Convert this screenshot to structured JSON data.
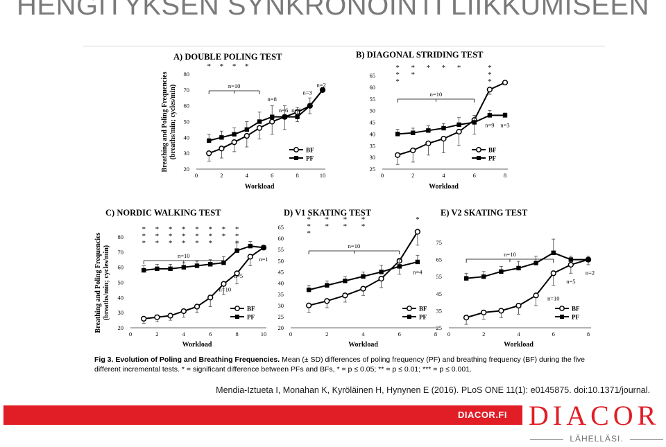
{
  "slide": {
    "title": "HENGITYKSEN SYNKRONOINTI LIIKKUMISEEN",
    "citation": "Mendia-Iztueta I, Monahan K, Kyröläinen H, Hynynen E (2016). PLoS ONE 11(1): e0145875. doi:10.1371/journal.",
    "footer_url": "DIACOR.FI",
    "brand": "DIACOR",
    "slogan": "LÄHELLÄSI."
  },
  "caption": {
    "label": "Fig 3.",
    "title": "Evolution of Poling and Breathing Frequencies.",
    "text1": " Mean (± SD) differences of poling frequency (PF) and breathing frequency (BF) during the five",
    "text2": "different incremental tests. * = significant difference between PFs and BFs, * = p ≤ 0.05; ** = p ≤ 0.01; *** = p ≤ 0.001."
  },
  "chart_data": [
    {
      "type": "line",
      "title": "A) DOUBLE POLING TEST",
      "xlabel": "Workload",
      "ylabel": "Breathing and Poling Frequencies (breaths/min; cycles/min)",
      "xlim": [
        0,
        10
      ],
      "ylim": [
        20,
        80
      ],
      "xticks": [
        0,
        2,
        4,
        6,
        8,
        10
      ],
      "yticks": [
        20,
        30,
        40,
        50,
        60,
        70,
        80
      ],
      "x": [
        1,
        2,
        3,
        4,
        5,
        6,
        7,
        8,
        9,
        10
      ],
      "series": [
        {
          "name": "BF",
          "marker": "open-circle",
          "values": [
            30,
            33,
            37,
            41,
            46,
            50,
            53,
            56,
            60,
            70
          ],
          "err": [
            5,
            6,
            6,
            7,
            7,
            8,
            8,
            6,
            5,
            1
          ]
        },
        {
          "name": "PF",
          "marker": "filled-square",
          "values": [
            38,
            40,
            42,
            45,
            50,
            53,
            53,
            53,
            60,
            70
          ],
          "err": [
            4,
            4,
            4,
            5,
            6,
            7,
            7,
            6,
            5,
            1
          ]
        }
      ],
      "significance": [
        {
          "x": 1,
          "mark": "*"
        },
        {
          "x": 2,
          "mark": "*"
        },
        {
          "x": 3,
          "mark": "*"
        },
        {
          "x": 4,
          "mark": "*"
        }
      ],
      "bracket": {
        "from": 1,
        "to": 5,
        "label": "n=10"
      },
      "annotations": [
        {
          "text": "n=8",
          "x": 6.0,
          "y": 63
        },
        {
          "text": "n=6",
          "x": 6.9,
          "y": 56
        },
        {
          "text": "n=4",
          "x": 7.9,
          "y": 56
        },
        {
          "text": "n=3",
          "x": 8.8,
          "y": 67
        },
        {
          "text": "n=2",
          "x": 9.9,
          "y": 72
        }
      ],
      "legend": "bottom-right"
    },
    {
      "type": "line",
      "title": "B) DIAGONAL STRIDING TEST",
      "xlabel": "Workload",
      "ylabel": "",
      "xlim": [
        0,
        8
      ],
      "ylim": [
        25,
        65
      ],
      "xticks": [
        0,
        2,
        4,
        6,
        8
      ],
      "yticks": [
        25,
        30,
        35,
        40,
        45,
        50,
        55,
        60,
        65
      ],
      "x": [
        1,
        2,
        3,
        4,
        5,
        6,
        7,
        8
      ],
      "series": [
        {
          "name": "BF",
          "marker": "open-circle",
          "values": [
            31,
            33,
            36,
            38,
            41,
            46,
            59,
            62
          ],
          "err": [
            4,
            5,
            5,
            6,
            6,
            6,
            2,
            1
          ]
        },
        {
          "name": "PF",
          "marker": "filled-square",
          "values": [
            40,
            40.5,
            41.5,
            42.5,
            44,
            45,
            48,
            48
          ],
          "err": [
            2,
            2,
            2,
            2,
            3,
            3,
            2,
            1
          ]
        }
      ],
      "significance": [
        {
          "x": 1,
          "mark": "***"
        },
        {
          "x": 2,
          "mark": "**"
        },
        {
          "x": 3,
          "mark": "*"
        },
        {
          "x": 4,
          "mark": "*"
        },
        {
          "x": 5,
          "mark": "*"
        },
        {
          "x": 7,
          "mark": "***"
        }
      ],
      "bracket": {
        "from": 1,
        "to": 6,
        "label": "n=10"
      },
      "annotations": [
        {
          "text": "n=9",
          "x": 7.0,
          "y": 43
        },
        {
          "text": "n=3",
          "x": 8.0,
          "y": 43
        }
      ],
      "legend": "bottom-right"
    },
    {
      "type": "line",
      "title": "C) NORDIC WALKING TEST",
      "xlabel": "Workload",
      "ylabel": "Breathing and Poling Frequencies (breaths/min; cycles/min)",
      "xlim": [
        0,
        10
      ],
      "ylim": [
        20,
        80
      ],
      "xticks": [
        0,
        2,
        4,
        6,
        8,
        10
      ],
      "yticks": [
        20,
        30,
        40,
        50,
        60,
        70,
        80
      ],
      "x": [
        1,
        2,
        3,
        4,
        5,
        6,
        7,
        8,
        9,
        10
      ],
      "series": [
        {
          "name": "BF",
          "marker": "open-circle",
          "values": [
            26,
            27,
            28,
            31,
            34,
            40,
            49,
            56,
            67,
            73
          ],
          "err": [
            3,
            3,
            3,
            4,
            4,
            6,
            7,
            7,
            6,
            1
          ]
        },
        {
          "name": "PF",
          "marker": "filled-square",
          "values": [
            58,
            59,
            59,
            60,
            61,
            62,
            63,
            71,
            74,
            73
          ],
          "err": [
            3,
            3,
            3,
            3,
            3,
            3,
            4,
            5,
            3,
            1
          ]
        }
      ],
      "significance": [
        {
          "x": 1,
          "mark": "***"
        },
        {
          "x": 2,
          "mark": "***"
        },
        {
          "x": 3,
          "mark": "***"
        },
        {
          "x": 4,
          "mark": "***"
        },
        {
          "x": 5,
          "mark": "***"
        },
        {
          "x": 6,
          "mark": "***"
        },
        {
          "x": 7,
          "mark": "**"
        },
        {
          "x": 8,
          "mark": "***"
        }
      ],
      "bracket": {
        "from": 1,
        "to": 7,
        "label": "n=10"
      },
      "annotations": [
        {
          "text": "n=1",
          "x": 10.0,
          "y": 64
        },
        {
          "text": "n=5",
          "x": 8.1,
          "y": 53
        },
        {
          "text": "n=10",
          "x": 7.1,
          "y": 44
        }
      ],
      "legend": "bottom-right"
    },
    {
      "type": "line",
      "title": "D) V1 SKATING TEST",
      "xlabel": "Workload",
      "ylabel": "",
      "xlim": [
        0,
        8
      ],
      "ylim": [
        20,
        65
      ],
      "xticks": [
        0,
        2,
        4,
        6,
        8
      ],
      "yticks": [
        20,
        25,
        30,
        35,
        40,
        45,
        50,
        55,
        60,
        65
      ],
      "x": [
        1,
        2,
        3,
        4,
        5,
        6,
        7
      ],
      "series": [
        {
          "name": "BF",
          "marker": "open-circle",
          "values": [
            30,
            32,
            34.5,
            37.5,
            42,
            50,
            63
          ],
          "err": [
            3,
            3,
            3,
            3,
            4,
            6,
            6
          ]
        },
        {
          "name": "PF",
          "marker": "filled-square",
          "values": [
            37,
            39,
            41,
            43,
            45,
            47.5,
            49.5
          ],
          "err": [
            2,
            2,
            2,
            2,
            3,
            3,
            3
          ]
        }
      ],
      "significance": [
        {
          "x": 1,
          "mark": "***"
        },
        {
          "x": 2,
          "mark": "**"
        },
        {
          "x": 3,
          "mark": "**"
        },
        {
          "x": 4,
          "mark": "**"
        },
        {
          "x": 7,
          "mark": "*"
        }
      ],
      "bracket": {
        "from": 1,
        "to": 6,
        "label": "n=10"
      },
      "annotations": [
        {
          "text": "n=4",
          "x": 7.0,
          "y": 44
        }
      ],
      "legend": "bottom-right"
    },
    {
      "type": "line",
      "title": "E) V2 SKATING TEST",
      "xlabel": "Workload",
      "ylabel": "",
      "xlim": [
        0,
        8
      ],
      "ylim": [
        25,
        75
      ],
      "xticks": [
        0,
        2,
        4,
        6,
        8
      ],
      "yticks": [
        25,
        35,
        45,
        55,
        65,
        75
      ],
      "x": [
        1,
        2,
        3,
        4,
        5,
        6,
        7,
        8
      ],
      "series": [
        {
          "name": "BF",
          "marker": "open-circle",
          "values": [
            31,
            34,
            35,
            38,
            44,
            57,
            62,
            65
          ],
          "err": [
            4,
            4,
            4,
            5,
            6,
            7,
            5,
            3
          ]
        },
        {
          "name": "PF",
          "marker": "filled-square",
          "values": [
            54,
            55,
            58,
            60,
            63,
            69,
            65,
            65
          ],
          "err": [
            3,
            3,
            3,
            4,
            4,
            8,
            2,
            2
          ]
        }
      ],
      "significance": [],
      "bracket": {
        "from": 1,
        "to": 6,
        "label": "n=10"
      },
      "annotations": [
        {
          "text": "n=5",
          "x": 7.0,
          "y": 51
        },
        {
          "text": "n=2",
          "x": 8.1,
          "y": 56
        },
        {
          "text": "n=10",
          "x": 6.0,
          "y": 41
        }
      ],
      "legend": "bottom-right"
    }
  ]
}
